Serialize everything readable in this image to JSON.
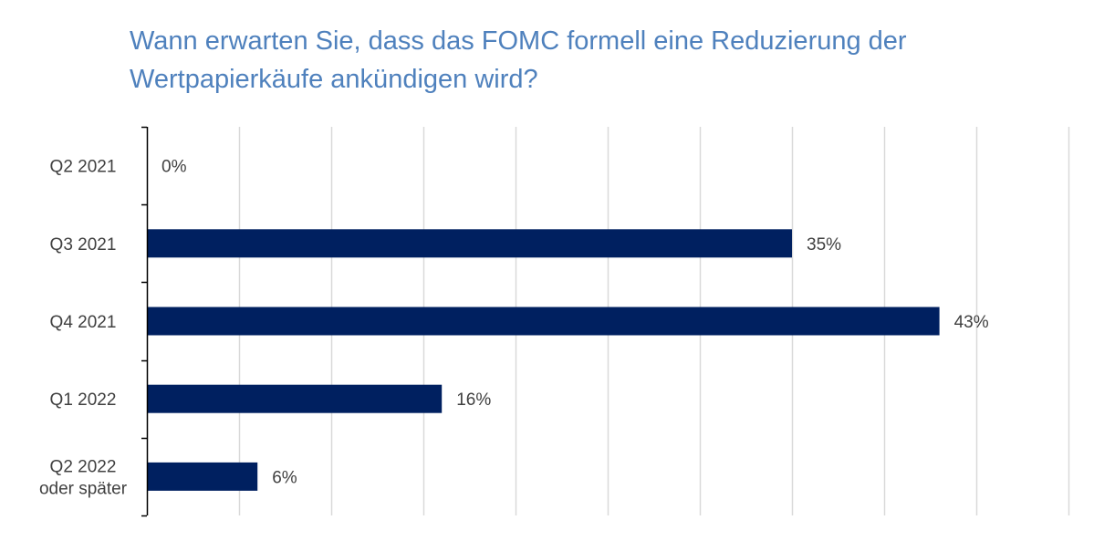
{
  "chart_data": {
    "type": "bar",
    "orientation": "horizontal",
    "title": "Wann erwarten Sie, dass das FOMC formell eine Reduzierung der Wertpapierkäufe ankündigen wird?",
    "categories": [
      "Q2 2021",
      "Q3 2021",
      "Q4 2021",
      "Q1 2022",
      "Q2 2022 oder später"
    ],
    "category_lines": [
      [
        "Q2 2021"
      ],
      [
        "Q3 2021"
      ],
      [
        "Q4 2021"
      ],
      [
        "Q1 2022"
      ],
      [
        "Q2 2022",
        "oder später"
      ]
    ],
    "values": [
      0,
      35,
      43,
      16,
      6
    ],
    "data_labels": [
      "0%",
      "35%",
      "43%",
      "16%",
      "6%"
    ],
    "xlim": [
      0,
      50
    ],
    "x_grid_step": 5,
    "grid": true,
    "legend": "none",
    "xlabel": "",
    "ylabel": "",
    "colors": {
      "bar": "#002060",
      "title": "#4f81bd",
      "grid": "#d9d9d9",
      "axis": "#000000",
      "text": "#404040"
    }
  }
}
